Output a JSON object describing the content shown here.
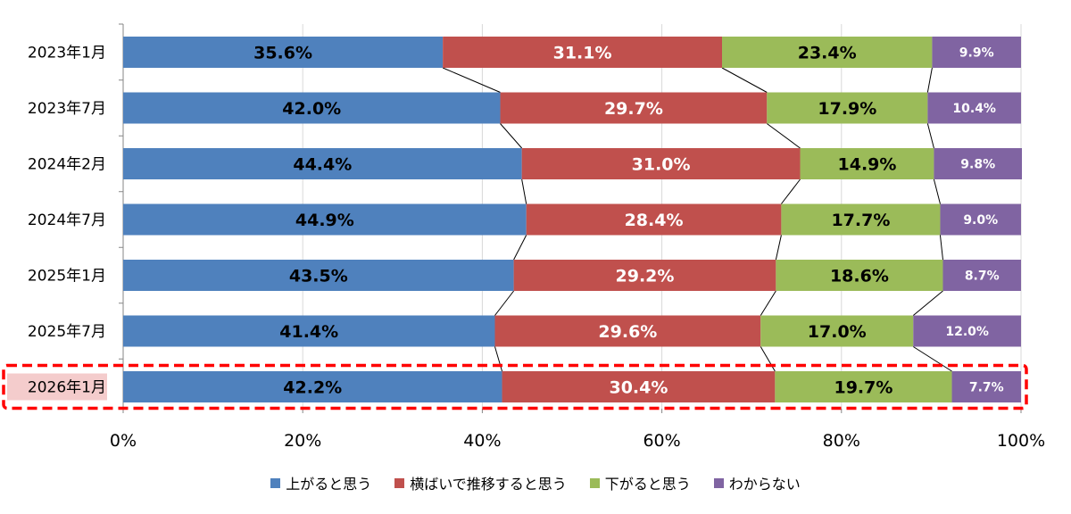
{
  "chart_data": {
    "type": "bar",
    "orientation": "horizontal",
    "stacked": true,
    "percent": true,
    "categories": [
      "2023年1月",
      "2023年7月",
      "2024年2月",
      "2024年7月",
      "2025年1月",
      "2025年7月",
      "2026年1月"
    ],
    "series": [
      {
        "name": "上がると思う",
        "color": "#4F81BD",
        "label_color": "#000000",
        "values": [
          35.6,
          42.0,
          44.4,
          44.9,
          43.5,
          41.4,
          42.2
        ],
        "labels": [
          "35.6%",
          "42.0%",
          "44.4%",
          "44.9%",
          "43.5%",
          "41.4%",
          "42.2%"
        ]
      },
      {
        "name": "横ばいで推移すると思う",
        "color": "#C0504D",
        "label_color": "#ffffff",
        "values": [
          31.1,
          29.7,
          31.0,
          28.4,
          29.2,
          29.6,
          30.4
        ],
        "labels": [
          "31.1%",
          "29.7%",
          "31.0%",
          "28.4%",
          "29.2%",
          "29.6%",
          "30.4%"
        ]
      },
      {
        "name": "下がると思う",
        "color": "#9BBB59",
        "label_color": "#000000",
        "values": [
          23.4,
          17.9,
          14.9,
          17.7,
          18.6,
          17.0,
          19.7
        ],
        "labels": [
          "23.4%",
          "17.9%",
          "14.9%",
          "17.7%",
          "18.6%",
          "17.0%",
          "19.7%"
        ]
      },
      {
        "name": "わからない",
        "color": "#8064A2",
        "label_color": "#ffffff",
        "values": [
          9.9,
          10.4,
          9.8,
          9.0,
          8.7,
          12.0,
          7.7
        ],
        "labels": [
          "9.9%",
          "10.4%",
          "9.8%",
          "9.0%",
          "8.7%",
          "12.0%",
          "7.7%"
        ]
      }
    ],
    "xticks": [
      "0%",
      "20%",
      "40%",
      "60%",
      "80%",
      "100%"
    ],
    "xlim": [
      0,
      100
    ],
    "grid": true,
    "series_lines": true,
    "legend_position": "bottom",
    "highlight": {
      "category": "2026年1月",
      "border_color": "#FF0000",
      "label_background": "#F4CCCC",
      "style": "dashed"
    }
  }
}
